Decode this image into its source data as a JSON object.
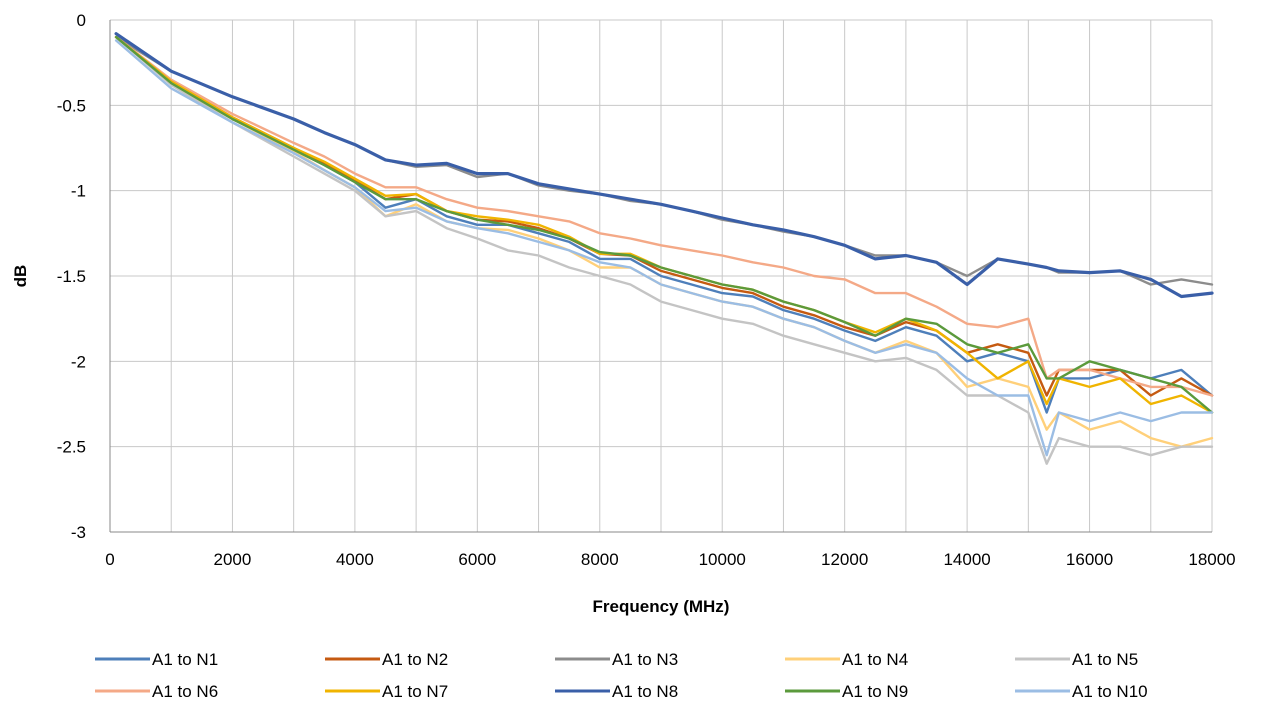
{
  "chart_data": {
    "type": "line",
    "title": "",
    "xlabel": "Frequency (MHz)",
    "ylabel": "dB",
    "xlim": [
      0,
      18000
    ],
    "ylim": [
      -3,
      0
    ],
    "x_ticks": [
      0,
      2000,
      4000,
      6000,
      8000,
      10000,
      12000,
      14000,
      16000,
      18000
    ],
    "y_ticks": [
      0,
      -0.5,
      -1,
      -1.5,
      -2,
      -2.5,
      -3
    ],
    "x_tick_labels": [
      "0",
      "2000",
      "4000",
      "6000",
      "8000",
      "10000",
      "12000",
      "14000",
      "16000",
      "18000"
    ],
    "y_tick_labels": [
      "0",
      "-0.5",
      "-1",
      "-1.5",
      "-2",
      "-2.5",
      "-3"
    ],
    "grid": true,
    "legend_position": "bottom",
    "x": [
      100,
      1000,
      2000,
      3000,
      3500,
      4000,
      4500,
      5000,
      5500,
      6000,
      6500,
      7000,
      7500,
      8000,
      8500,
      9000,
      9500,
      10000,
      10500,
      11000,
      11500,
      12000,
      12500,
      13000,
      13500,
      14000,
      14500,
      15000,
      15300,
      15500,
      16000,
      16500,
      17000,
      17500,
      18000
    ],
    "series": [
      {
        "name": "A1 to N1",
        "color": "#4e7fba",
        "values": [
          -0.1,
          -0.37,
          -0.58,
          -0.76,
          -0.85,
          -0.95,
          -1.1,
          -1.05,
          -1.15,
          -1.2,
          -1.2,
          -1.25,
          -1.3,
          -1.4,
          -1.4,
          -1.5,
          -1.55,
          -1.6,
          -1.62,
          -1.7,
          -1.75,
          -1.82,
          -1.88,
          -1.8,
          -1.85,
          -2.0,
          -1.95,
          -2.0,
          -2.3,
          -2.1,
          -2.1,
          -2.05,
          -2.1,
          -2.05,
          -2.2
        ]
      },
      {
        "name": "A1 to N2",
        "color": "#c55a11",
        "values": [
          -0.1,
          -0.36,
          -0.57,
          -0.75,
          -0.84,
          -0.94,
          -1.05,
          -1.02,
          -1.12,
          -1.17,
          -1.18,
          -1.22,
          -1.28,
          -1.37,
          -1.38,
          -1.47,
          -1.52,
          -1.57,
          -1.6,
          -1.68,
          -1.73,
          -1.8,
          -1.85,
          -1.77,
          -1.82,
          -1.95,
          -1.9,
          -1.95,
          -2.2,
          -2.05,
          -2.05,
          -2.05,
          -2.2,
          -2.1,
          -2.2
        ]
      },
      {
        "name": "A1 to N3",
        "color": "#8c8c8c",
        "values": [
          -0.1,
          -0.3,
          -0.45,
          -0.58,
          -0.66,
          -0.73,
          -0.82,
          -0.86,
          -0.85,
          -0.92,
          -0.9,
          -0.97,
          -1.0,
          -1.02,
          -1.06,
          -1.08,
          -1.12,
          -1.17,
          -1.2,
          -1.24,
          -1.27,
          -1.32,
          -1.38,
          -1.38,
          -1.42,
          -1.5,
          -1.4,
          -1.43,
          -1.45,
          -1.48,
          -1.48,
          -1.47,
          -1.55,
          -1.52,
          -1.55
        ]
      },
      {
        "name": "A1 to N4",
        "color": "#ffd07a",
        "values": [
          -0.1,
          -0.37,
          -0.58,
          -0.77,
          -0.88,
          -0.98,
          -1.15,
          -1.08,
          -1.18,
          -1.22,
          -1.23,
          -1.28,
          -1.35,
          -1.45,
          -1.45,
          -1.55,
          -1.6,
          -1.65,
          -1.68,
          -1.75,
          -1.8,
          -1.88,
          -1.95,
          -1.88,
          -1.95,
          -2.15,
          -2.1,
          -2.15,
          -2.4,
          -2.3,
          -2.4,
          -2.35,
          -2.45,
          -2.5,
          -2.45
        ]
      },
      {
        "name": "A1 to N5",
        "color": "#c4c4c4",
        "values": [
          -0.1,
          -0.38,
          -0.6,
          -0.8,
          -0.9,
          -1.0,
          -1.15,
          -1.12,
          -1.22,
          -1.28,
          -1.35,
          -1.38,
          -1.45,
          -1.5,
          -1.55,
          -1.65,
          -1.7,
          -1.75,
          -1.78,
          -1.85,
          -1.9,
          -1.95,
          -2.0,
          -1.98,
          -2.05,
          -2.2,
          -2.2,
          -2.3,
          -2.6,
          -2.45,
          -2.5,
          -2.5,
          -2.55,
          -2.5,
          -2.5
        ]
      },
      {
        "name": "A1 to N6",
        "color": "#f4a987",
        "values": [
          -0.1,
          -0.35,
          -0.55,
          -0.72,
          -0.8,
          -0.9,
          -0.98,
          -0.98,
          -1.05,
          -1.1,
          -1.12,
          -1.15,
          -1.18,
          -1.25,
          -1.28,
          -1.32,
          -1.35,
          -1.38,
          -1.42,
          -1.45,
          -1.5,
          -1.52,
          -1.6,
          -1.6,
          -1.68,
          -1.78,
          -1.8,
          -1.75,
          -2.1,
          -2.05,
          -2.05,
          -2.1,
          -2.15,
          -2.15,
          -2.2
        ]
      },
      {
        "name": "A1 to N7",
        "color": "#f0b400",
        "values": [
          -0.1,
          -0.36,
          -0.57,
          -0.75,
          -0.83,
          -0.93,
          -1.03,
          -1.02,
          -1.12,
          -1.15,
          -1.17,
          -1.2,
          -1.27,
          -1.37,
          -1.37,
          -1.45,
          -1.5,
          -1.55,
          -1.58,
          -1.65,
          -1.7,
          -1.77,
          -1.83,
          -1.75,
          -1.82,
          -1.95,
          -2.1,
          -2.0,
          -2.25,
          -2.1,
          -2.15,
          -2.1,
          -2.25,
          -2.2,
          -2.3
        ]
      },
      {
        "name": "A1 to N8",
        "color": "#3a5fa8",
        "values": [
          -0.08,
          -0.3,
          -0.45,
          -0.58,
          -0.66,
          -0.73,
          -0.82,
          -0.85,
          -0.84,
          -0.9,
          -0.9,
          -0.96,
          -0.99,
          -1.02,
          -1.05,
          -1.08,
          -1.12,
          -1.16,
          -1.2,
          -1.23,
          -1.27,
          -1.32,
          -1.4,
          -1.38,
          -1.42,
          -1.55,
          -1.4,
          -1.43,
          -1.45,
          -1.47,
          -1.48,
          -1.47,
          -1.52,
          -1.62,
          -1.6
        ]
      },
      {
        "name": "A1 to N9",
        "color": "#5b9a3c",
        "values": [
          -0.1,
          -0.37,
          -0.58,
          -0.76,
          -0.85,
          -0.95,
          -1.05,
          -1.05,
          -1.12,
          -1.17,
          -1.2,
          -1.23,
          -1.28,
          -1.36,
          -1.38,
          -1.45,
          -1.5,
          -1.55,
          -1.58,
          -1.65,
          -1.7,
          -1.77,
          -1.85,
          -1.75,
          -1.78,
          -1.9,
          -1.95,
          -1.9,
          -2.1,
          -2.1,
          -2.0,
          -2.05,
          -2.1,
          -2.15,
          -2.3
        ]
      },
      {
        "name": "A1 to N10",
        "color": "#9bbde4",
        "values": [
          -0.12,
          -0.4,
          -0.6,
          -0.78,
          -0.88,
          -0.98,
          -1.12,
          -1.1,
          -1.18,
          -1.22,
          -1.25,
          -1.3,
          -1.35,
          -1.42,
          -1.45,
          -1.55,
          -1.6,
          -1.65,
          -1.68,
          -1.75,
          -1.8,
          -1.88,
          -1.95,
          -1.9,
          -1.95,
          -2.1,
          -2.2,
          -2.2,
          -2.55,
          -2.3,
          -2.35,
          -2.3,
          -2.35,
          -2.3,
          -2.3
        ]
      }
    ]
  }
}
